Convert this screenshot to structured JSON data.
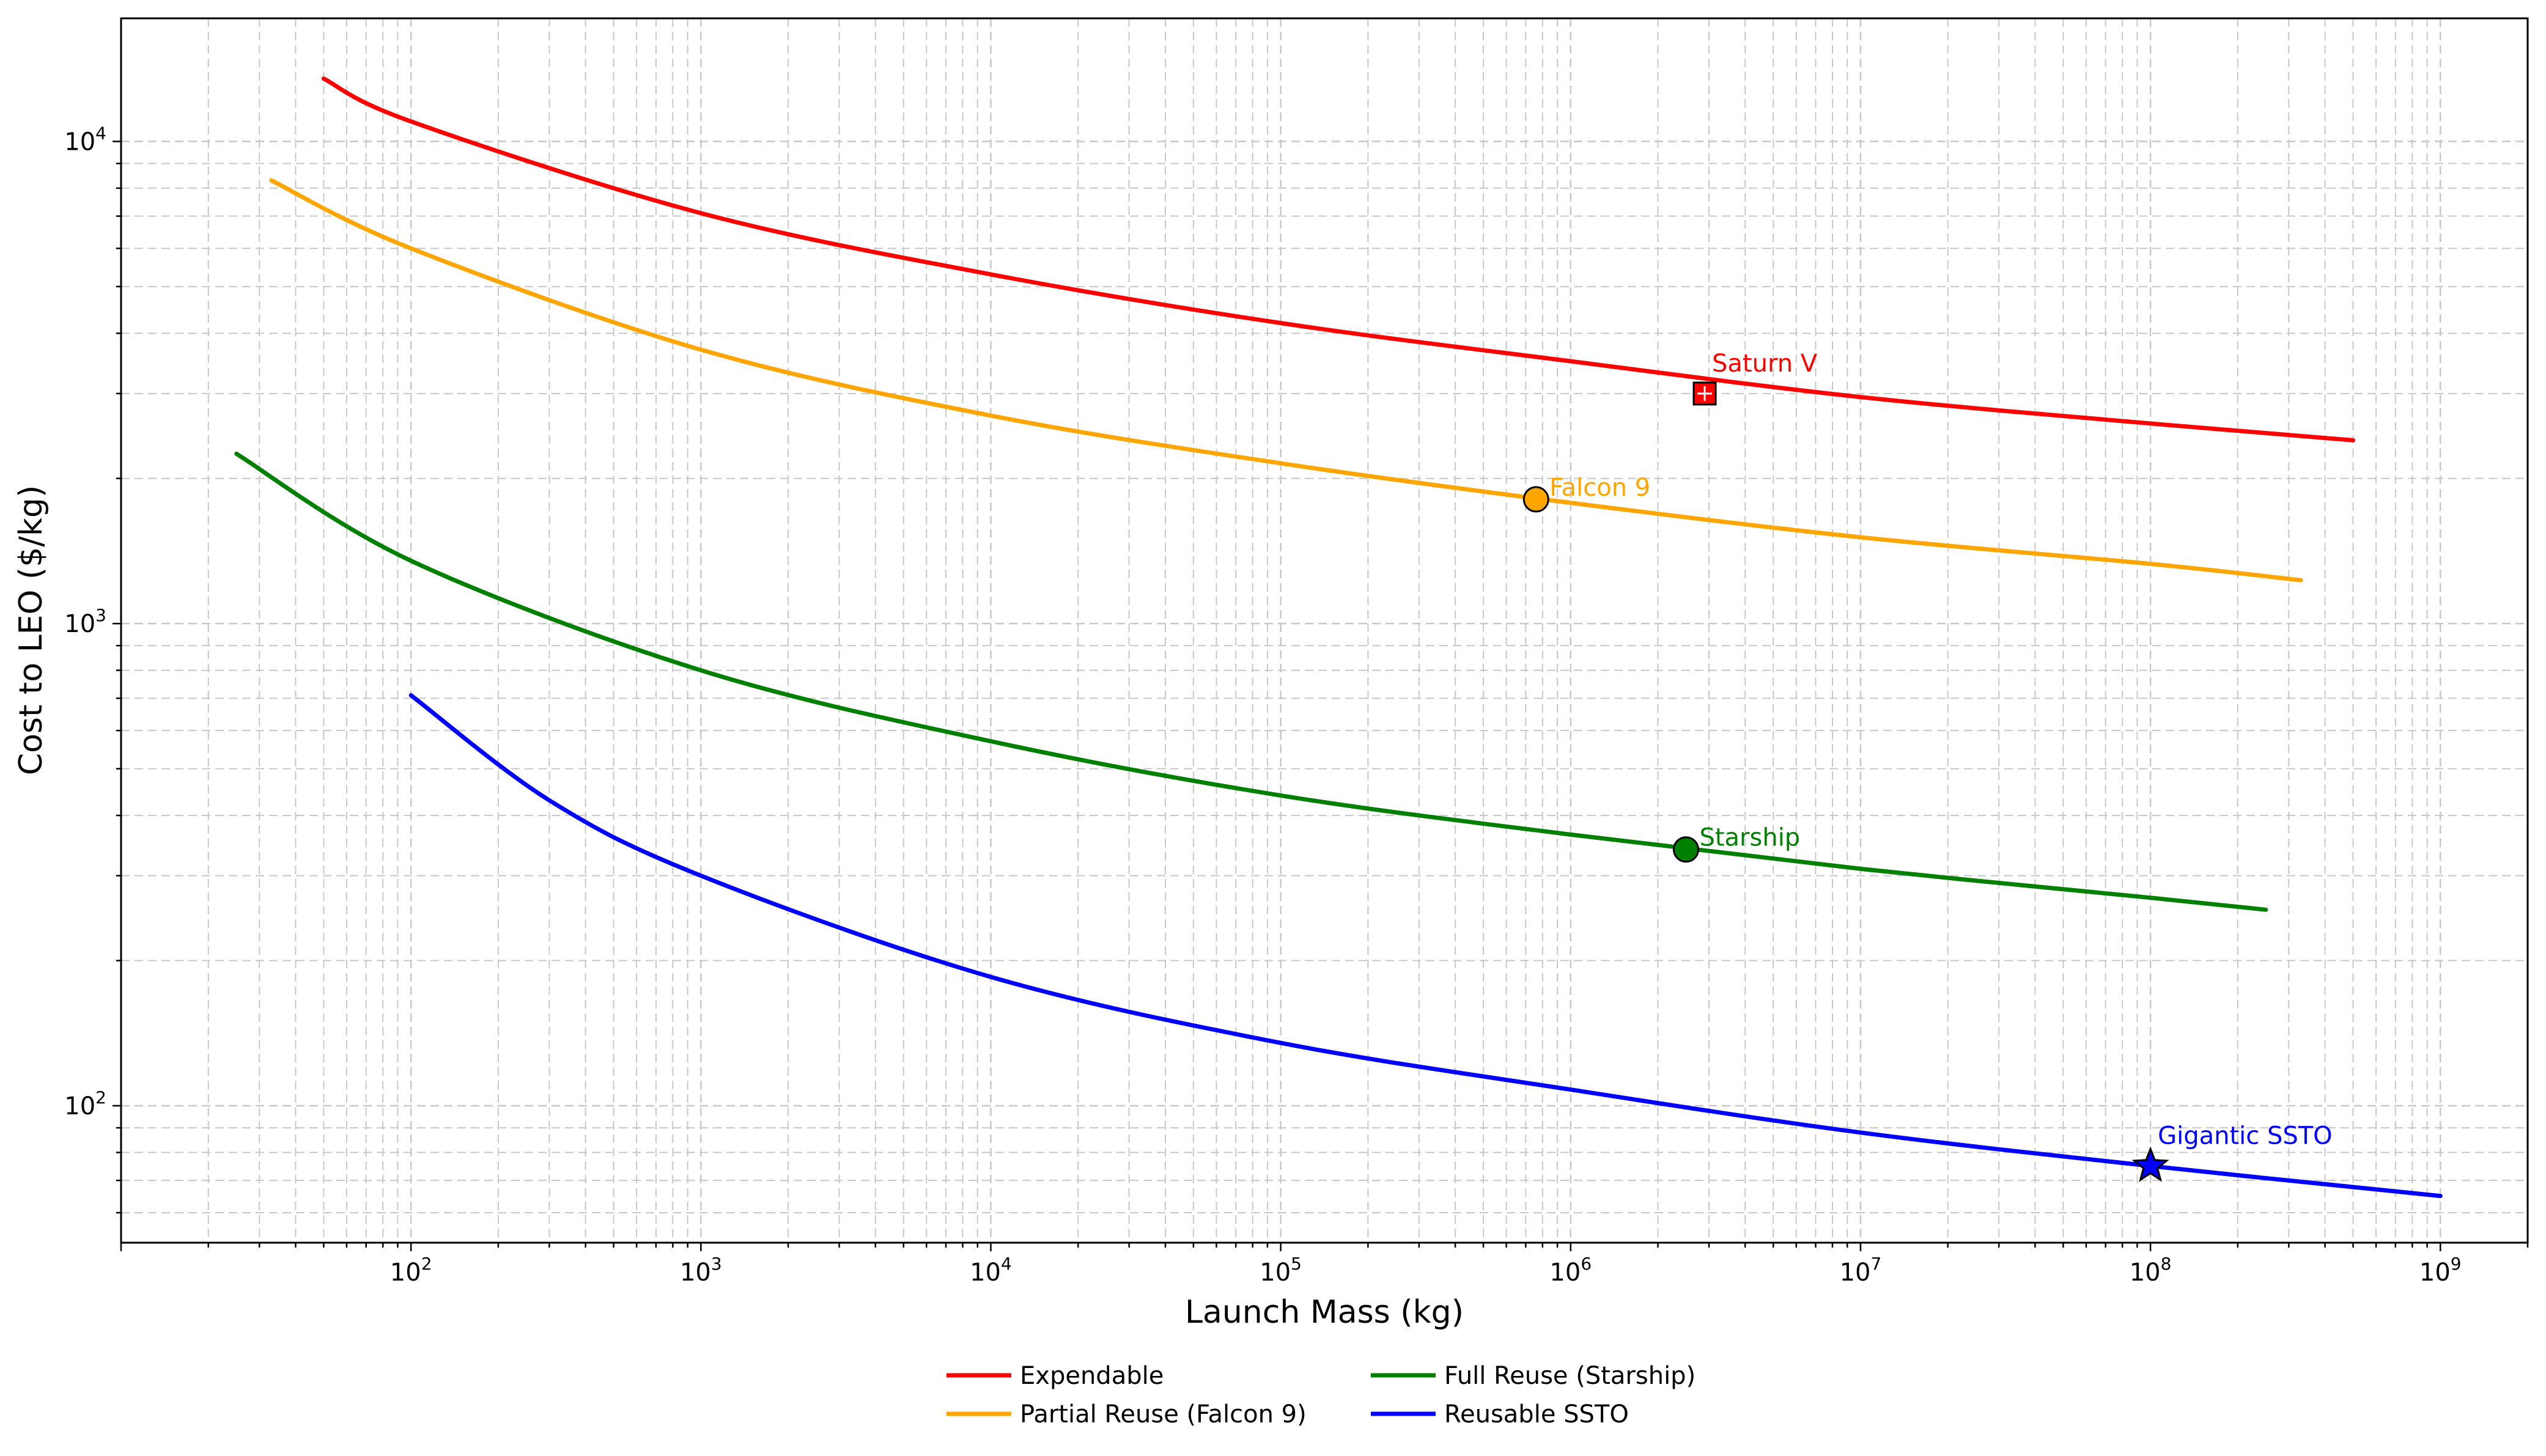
{
  "chart_data": {
    "type": "line",
    "title": "",
    "xlabel": "Launch Mass (kg)",
    "ylabel": "Cost to LEO ($/kg)",
    "x_scale": "log",
    "y_scale": "log",
    "xlim": [
      10,
      2000000000
    ],
    "ylim": [
      52,
      18000
    ],
    "x_ticks": [
      {
        "value": 100,
        "base": "10",
        "exp": "2"
      },
      {
        "value": 1000,
        "base": "10",
        "exp": "3"
      },
      {
        "value": 10000,
        "base": "10",
        "exp": "4"
      },
      {
        "value": 100000,
        "base": "10",
        "exp": "5"
      },
      {
        "value": 1000000,
        "base": "10",
        "exp": "6"
      },
      {
        "value": 10000000,
        "base": "10",
        "exp": "7"
      },
      {
        "value": 100000000,
        "base": "10",
        "exp": "8"
      },
      {
        "value": 1000000000,
        "base": "10",
        "exp": "9"
      }
    ],
    "y_ticks": [
      {
        "value": 100,
        "base": "10",
        "exp": "2"
      },
      {
        "value": 1000,
        "base": "10",
        "exp": "3"
      },
      {
        "value": 10000,
        "base": "10",
        "exp": "4"
      }
    ],
    "grid": true,
    "legend_position": "bottom-center",
    "series": [
      {
        "name": "Expendable",
        "color": "#ff0000",
        "x": [
          50,
          100,
          1000,
          10000,
          100000,
          1000000,
          10000000,
          100000000,
          500000000
        ],
        "y": [
          13500,
          11000,
          7100,
          5300,
          4200,
          3500,
          2950,
          2600,
          2400
        ]
      },
      {
        "name": "Partial Reuse (Falcon 9)",
        "color": "#ffa500",
        "x": [
          33,
          100,
          1000,
          10000,
          100000,
          1000000,
          10000000,
          100000000,
          330000000
        ],
        "y": [
          8300,
          6000,
          3700,
          2700,
          2150,
          1780,
          1510,
          1330,
          1230
        ]
      },
      {
        "name": "Full Reuse (Starship)",
        "color": "#008000",
        "x": [
          25,
          100,
          1000,
          10000,
          100000,
          1000000,
          10000000,
          100000000,
          250000000
        ],
        "y": [
          2250,
          1350,
          800,
          570,
          440,
          365,
          310,
          270,
          255
        ]
      },
      {
        "name": "Reusable SSTO",
        "color": "#0000ff",
        "x": [
          100,
          300,
          1000,
          10000,
          100000,
          1000000,
          10000000,
          100000000,
          1000000000
        ],
        "y": [
          710,
          430,
          300,
          185,
          135,
          108,
          88,
          75,
          65
        ]
      }
    ],
    "annotations": [
      {
        "label": "Saturn V",
        "x": 2900000,
        "y": 3000,
        "marker": "square",
        "color": "#ff0000"
      },
      {
        "label": "Falcon 9",
        "x": 760000,
        "y": 1810,
        "marker": "circle",
        "color": "#ffa500"
      },
      {
        "label": "Starship",
        "x": 2500000,
        "y": 340,
        "marker": "circle",
        "color": "#008000"
      },
      {
        "label": "Gigantic SSTO",
        "x": 100000000,
        "y": 75,
        "marker": "star",
        "color": "#0000ff"
      }
    ]
  }
}
